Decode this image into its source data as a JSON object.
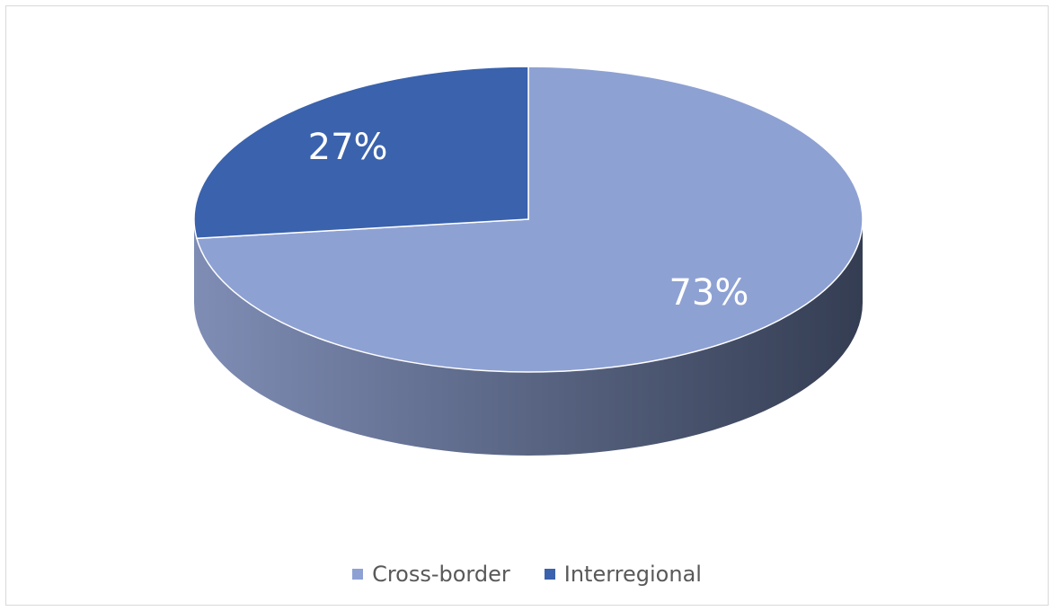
{
  "chart_data": {
    "type": "pie",
    "style": "3d",
    "categories": [
      "Cross-border",
      "Interregional"
    ],
    "values": [
      73,
      27
    ],
    "data_labels": [
      "73%",
      "27%"
    ],
    "colors": [
      "#8ea1d3",
      "#3a62ad"
    ],
    "side_colors": [
      "#7f8db5",
      "#343d52"
    ],
    "legend_position": "bottom",
    "title": ""
  },
  "legend": {
    "items": [
      {
        "label": "Cross-border",
        "color": "#8ea1d3"
      },
      {
        "label": "Interregional",
        "color": "#3a62ad"
      }
    ]
  }
}
